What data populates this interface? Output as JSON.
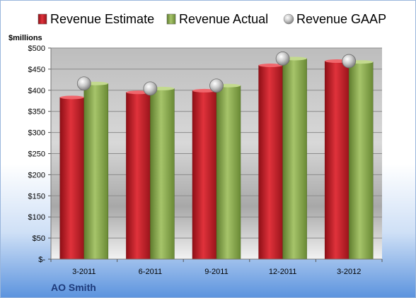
{
  "chart_data": {
    "type": "bar",
    "title": "",
    "ylabel": "$millions",
    "company": "AO Smith",
    "categories": [
      "3-2011",
      "6-2011",
      "9-2011",
      "12-2011",
      "3-2012"
    ],
    "series": [
      {
        "name": "Revenue Estimate",
        "kind": "bar",
        "color": "#C8202A",
        "values": [
          383,
          395,
          399,
          459,
          469
        ]
      },
      {
        "name": "Revenue Actual",
        "kind": "bar",
        "color": "#8FAE52",
        "values": [
          416,
          404,
          411,
          475,
          467
        ]
      },
      {
        "name": "Revenue GAAP",
        "kind": "marker",
        "color": "#A9A9A9",
        "values": [
          416,
          404,
          411,
          475,
          469
        ]
      }
    ],
    "ylim": [
      0,
      500
    ],
    "yticks": [
      0,
      50,
      100,
      150,
      200,
      250,
      300,
      350,
      400,
      450,
      500
    ],
    "ytick_labels": [
      "$-",
      "$50",
      "$100",
      "$150",
      "$200",
      "$250",
      "$300",
      "$350",
      "$400",
      "$450",
      "$500"
    ],
    "grid": true,
    "legend_position": "top"
  }
}
